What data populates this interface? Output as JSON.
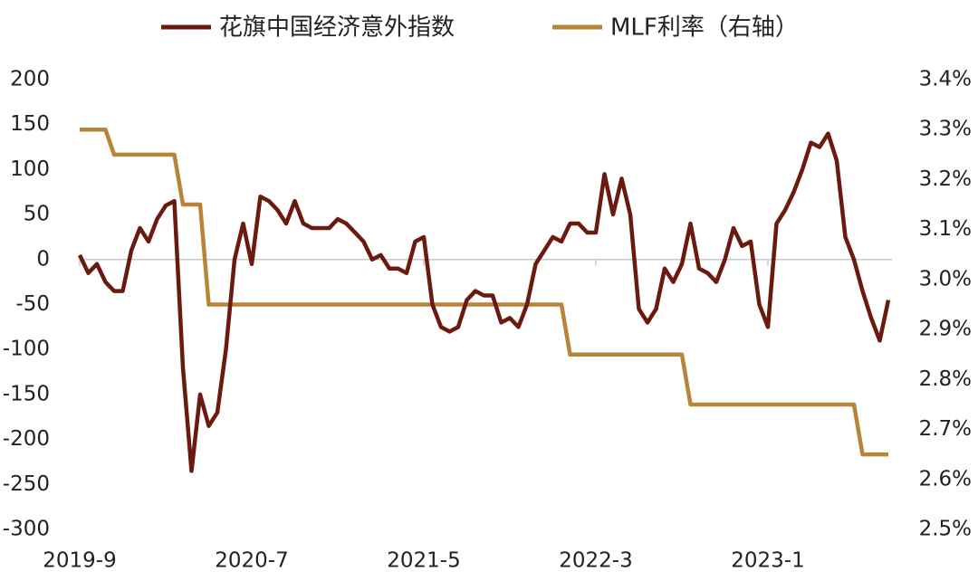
{
  "chart_data": {
    "type": "line",
    "categories": [
      "2019-9",
      null,
      null,
      null,
      null,
      null,
      null,
      null,
      null,
      null,
      null,
      null,
      null,
      null,
      null,
      null,
      null,
      null,
      null,
      null,
      "2020-7",
      null,
      null,
      null,
      null,
      null,
      null,
      null,
      null,
      null,
      null,
      null,
      null,
      null,
      null,
      null,
      null,
      null,
      null,
      null,
      "2021-5",
      null,
      null,
      null,
      null,
      null,
      null,
      null,
      null,
      null,
      null,
      null,
      null,
      null,
      null,
      null,
      null,
      null,
      null,
      null,
      "2022-3",
      null,
      null,
      null,
      null,
      null,
      null,
      null,
      null,
      null,
      null,
      null,
      null,
      null,
      null,
      null,
      null,
      null,
      null,
      null,
      "2023-1",
      null,
      null,
      null,
      null,
      null,
      null,
      null,
      null,
      null,
      null,
      null,
      null,
      null,
      null
    ],
    "series": [
      {
        "name": "花旗中国经济意外指数",
        "color": "#6b1a0f",
        "values": [
          5,
          -15,
          -5,
          -25,
          -35,
          -35,
          10,
          35,
          20,
          45,
          60,
          65,
          -120,
          -235,
          -150,
          -185,
          -170,
          -100,
          0,
          40,
          -5,
          70,
          65,
          55,
          40,
          65,
          40,
          35,
          35,
          35,
          45,
          40,
          30,
          20,
          0,
          5,
          -10,
          -10,
          -15,
          20,
          25,
          -50,
          -75,
          -80,
          -75,
          -45,
          -35,
          -40,
          -40,
          -70,
          -65,
          -75,
          -50,
          -5,
          10,
          25,
          20,
          40,
          40,
          30,
          30,
          95,
          50,
          90,
          50,
          -55,
          -70,
          -55,
          -10,
          -25,
          -5,
          40,
          -10,
          -15,
          -25,
          0,
          35,
          15,
          20,
          -50,
          -75,
          40,
          55,
          75,
          100,
          130,
          125,
          140,
          110,
          25,
          0,
          -35,
          -65,
          -90,
          -45
        ]
      },
      {
        "name": "MLF利率（右轴）",
        "color": "#b8843a",
        "axis": "y2",
        "values": [
          3.3,
          3.3,
          3.3,
          3.3,
          3.25,
          3.25,
          3.25,
          3.25,
          3.25,
          3.25,
          3.25,
          3.25,
          3.15,
          3.15,
          3.15,
          2.95,
          2.95,
          2.95,
          2.95,
          2.95,
          2.95,
          2.95,
          2.95,
          2.95,
          2.95,
          2.95,
          2.95,
          2.95,
          2.95,
          2.95,
          2.95,
          2.95,
          2.95,
          2.95,
          2.95,
          2.95,
          2.95,
          2.95,
          2.95,
          2.95,
          2.95,
          2.95,
          2.95,
          2.95,
          2.95,
          2.95,
          2.95,
          2.95,
          2.95,
          2.95,
          2.95,
          2.95,
          2.95,
          2.95,
          2.95,
          2.95,
          2.95,
          2.85,
          2.85,
          2.85,
          2.85,
          2.85,
          2.85,
          2.85,
          2.85,
          2.85,
          2.85,
          2.85,
          2.85,
          2.85,
          2.85,
          2.75,
          2.75,
          2.75,
          2.75,
          2.75,
          2.75,
          2.75,
          2.75,
          2.75,
          2.75,
          2.75,
          2.75,
          2.75,
          2.75,
          2.75,
          2.75,
          2.75,
          2.75,
          2.75,
          2.75,
          2.65,
          2.65,
          2.65,
          2.65
        ]
      }
    ],
    "ylim": [
      -300,
      200
    ],
    "yticks": [
      -300,
      -250,
      -200,
      -150,
      -100,
      -50,
      0,
      50,
      100,
      150,
      200
    ],
    "y2lim": [
      2.5,
      3.4
    ],
    "y2ticks": [
      {
        "value": 2.5,
        "label": "2.5%"
      },
      {
        "value": 2.6,
        "label": "2.6%"
      },
      {
        "value": 2.7,
        "label": "2.7%"
      },
      {
        "value": 2.8,
        "label": "2.8%"
      },
      {
        "value": 2.9,
        "label": "2.9%"
      },
      {
        "value": 3.0,
        "label": "3.0%"
      },
      {
        "value": 3.1,
        "label": "3.1%"
      },
      {
        "value": 3.2,
        "label": "3.2%"
      },
      {
        "value": 3.3,
        "label": "3.3%"
      },
      {
        "value": 3.4,
        "label": "3.4%"
      }
    ],
    "grid": false,
    "legend": "top"
  }
}
